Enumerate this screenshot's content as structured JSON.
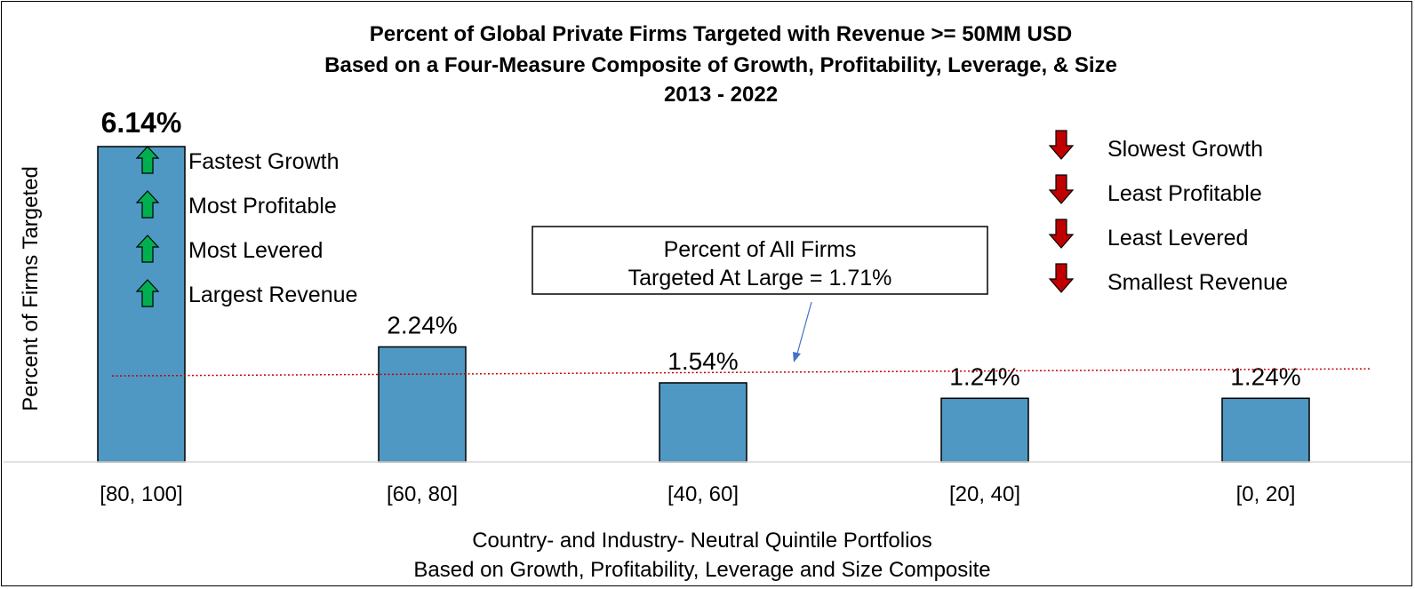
{
  "chart_data": {
    "type": "bar",
    "title": [
      "Percent of Global Private Firms Targeted with Revenue >= 50MM USD",
      "Based on a Four-Measure Composite of Growth, Profitability, Leverage, & Size",
      "2013 - 2022"
    ],
    "ylabel": "Percent of Firms Targeted",
    "xlabel": [
      "Country- and Industry- Neutral Quintile Portfolios",
      "Based on Growth, Profitability, Leverage and Size Composite"
    ],
    "categories": [
      "[80, 100]",
      "[60, 80]",
      "[40, 60]",
      "[20, 40]",
      "[0, 20]"
    ],
    "values": [
      6.14,
      2.24,
      1.54,
      1.24,
      1.24
    ],
    "data_labels": [
      "6.14%",
      "2.24%",
      "1.54%",
      "1.24%",
      "1.24%"
    ],
    "ylim": [
      0,
      6.14
    ],
    "bar_color": "#4F98C3",
    "grid": false,
    "reference_line": {
      "value": 1.71,
      "color": "#C00000",
      "style": "dotted"
    },
    "reference_callout": {
      "lines": [
        "Percent of All Firms",
        "Targeted At Large = 1.71%"
      ]
    },
    "top_quintile_annotations": {
      "icon": "green-up-arrow-icon",
      "color": "#00B050",
      "items": [
        "Fastest Growth",
        "Most Profitable",
        "Most Levered",
        "Largest Revenue"
      ]
    },
    "bottom_quintile_annotations": {
      "icon": "red-down-arrow-icon",
      "color": "#C00000",
      "items": [
        "Slowest Growth",
        "Least Profitable",
        "Least Levered",
        "Smallest Revenue"
      ]
    }
  }
}
